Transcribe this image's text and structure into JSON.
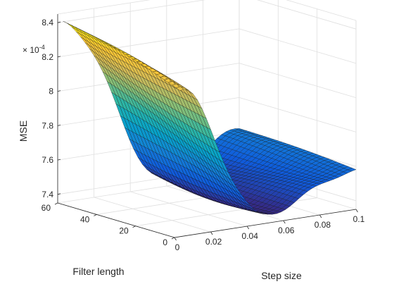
{
  "chart_data": {
    "type": "surface",
    "title": "",
    "xlabel": "Step size",
    "ylabel": "Filter length",
    "zlabel": "MSE",
    "z_exponent_label": "× 10",
    "z_exponent_power": "-4",
    "xlim": [
      0,
      0.1
    ],
    "ylim": [
      0,
      60
    ],
    "zlim": [
      7.35,
      8.45
    ],
    "x_ticks": [
      0,
      0.02,
      0.04,
      0.06,
      0.08,
      0.1
    ],
    "x_tick_labels": [
      "0",
      "0.02",
      "0.04",
      "0.06",
      "0.08",
      "0.1"
    ],
    "y_ticks": [
      0,
      20,
      40,
      60
    ],
    "y_tick_labels": [
      "0",
      "20",
      "40",
      "60"
    ],
    "z_ticks": [
      7.4,
      7.6,
      7.8,
      8.0,
      8.2,
      8.4
    ],
    "z_tick_labels": [
      "7.4",
      "7.6",
      "7.8",
      "8",
      "8.2",
      "8.4"
    ],
    "grid": true,
    "colormap": "parula",
    "colormap_colors": [
      "#352a87",
      "#0f5cdd",
      "#1481d6",
      "#06a4ca",
      "#2eb7a4",
      "#87bf77",
      "#d1bb59",
      "#fec832",
      "#f9fb0e"
    ],
    "surface_x_range": [
      0.003,
      0.1
    ],
    "surface_y_range": [
      0,
      60
    ],
    "surface_corner_values": {
      "x_min_y_max": 8.4,
      "x_min_y_min": 8.2,
      "x_max_y_max": 7.62,
      "x_max_y_min": 7.58
    },
    "surface_minimum": 7.4
  }
}
